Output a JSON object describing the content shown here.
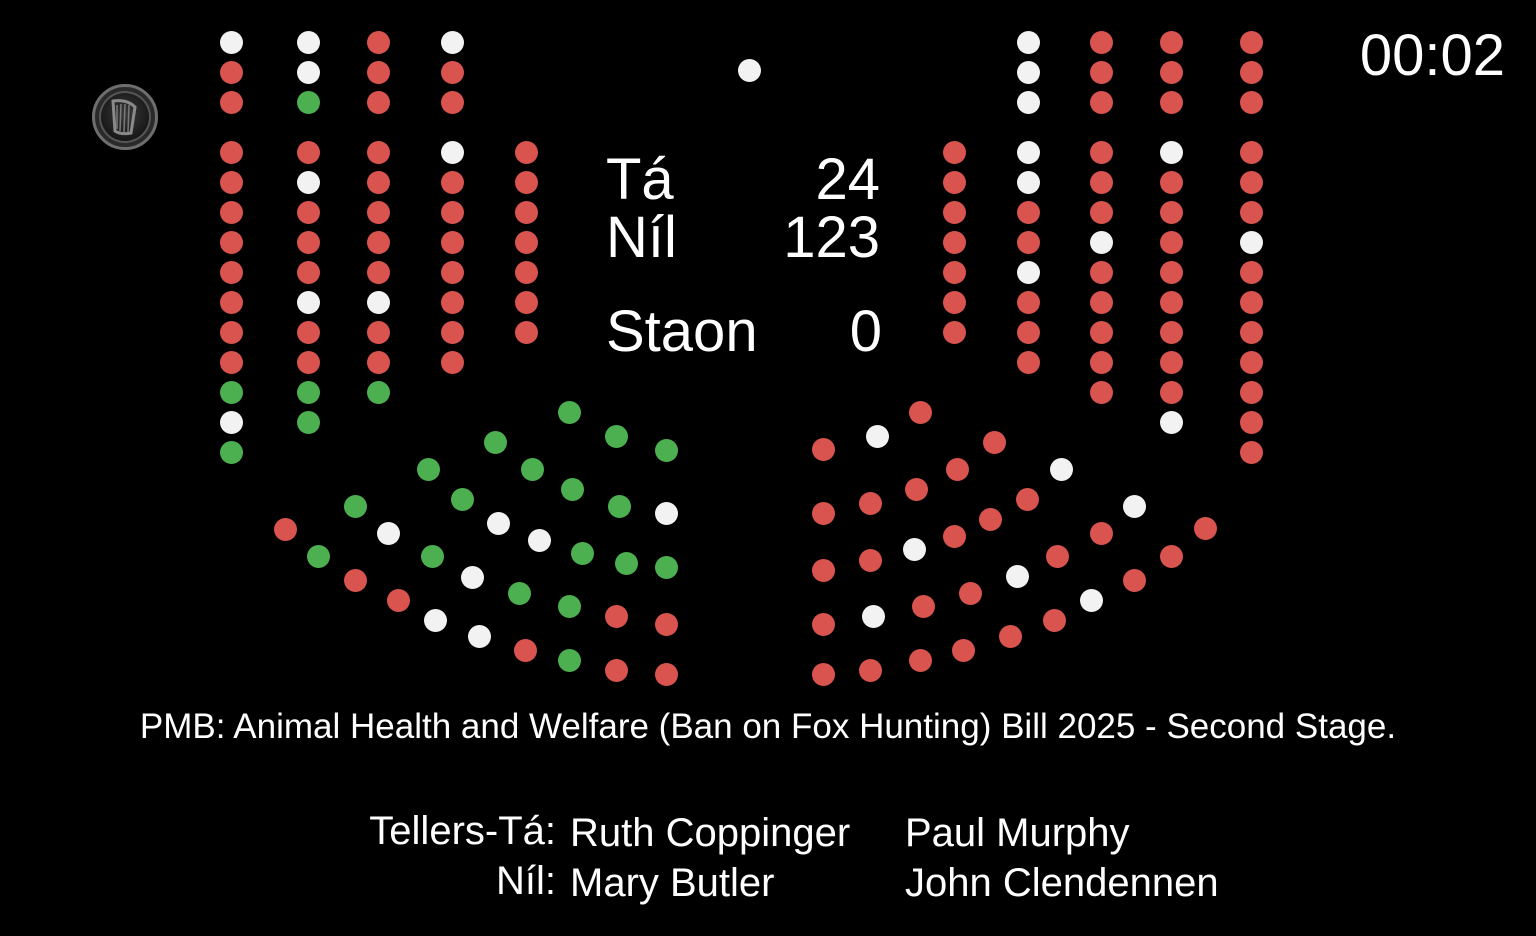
{
  "timer": "00:02",
  "tally": {
    "ta_label": "Tá",
    "ta_value": "24",
    "nil_label": "Níl",
    "nil_value": "123",
    "staon_label": "Staon",
    "staon_value": "0"
  },
  "bill_title": "PMB: Animal Health and Welfare (Ban on Fox Hunting) Bill 2025 - Second Stage.",
  "tellers": {
    "ta_label": "Tellers-Tá:",
    "ta_names": [
      "Ruth Coppinger",
      "Paul Murphy"
    ],
    "nil_label": "Níl:",
    "nil_names": [
      "Mary Butler",
      "John Clendennen"
    ]
  },
  "colors": {
    "background": "#000000",
    "ta_green": "#4caf50",
    "nil_red": "#d9534f",
    "absent_white": "#f2f2f2"
  },
  "logo_icon": "harp-emblem-icon"
}
